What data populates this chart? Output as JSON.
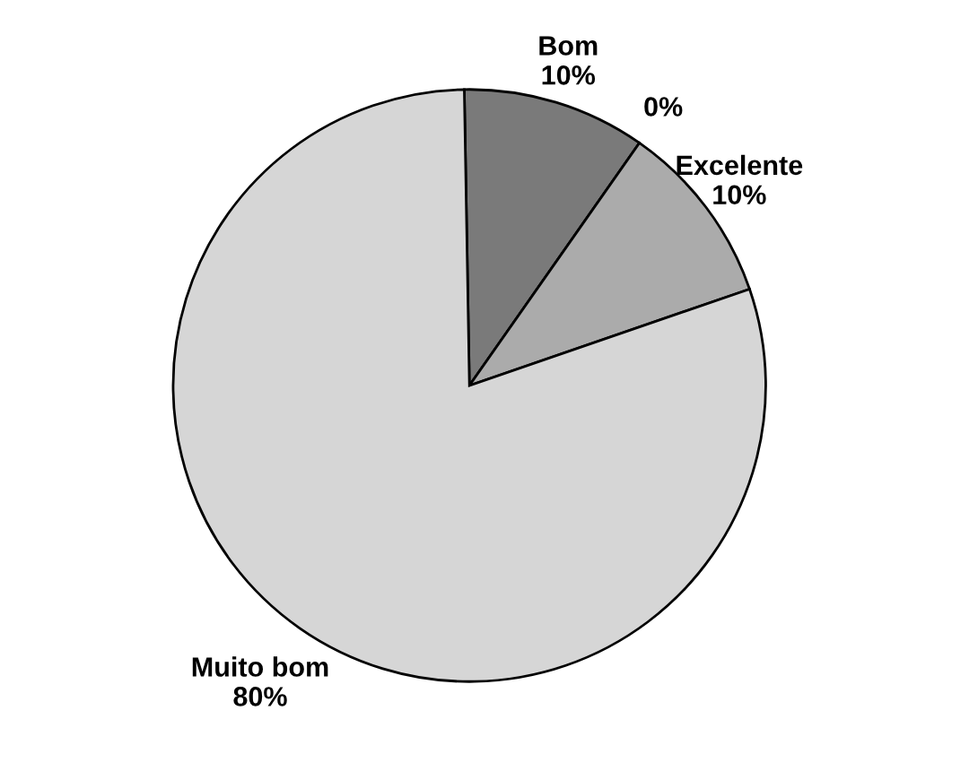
{
  "chart_data": {
    "type": "pie",
    "categories": [
      "Bom",
      null,
      "Excelente",
      "Muito bom"
    ],
    "values": [
      10,
      0,
      10,
      80
    ],
    "value_labels": [
      "10%",
      "0%",
      "10%",
      "80%"
    ],
    "colors": [
      "#7a7a7a",
      "#5a5a5a",
      "#ababab",
      "#d6d6d6"
    ]
  }
}
